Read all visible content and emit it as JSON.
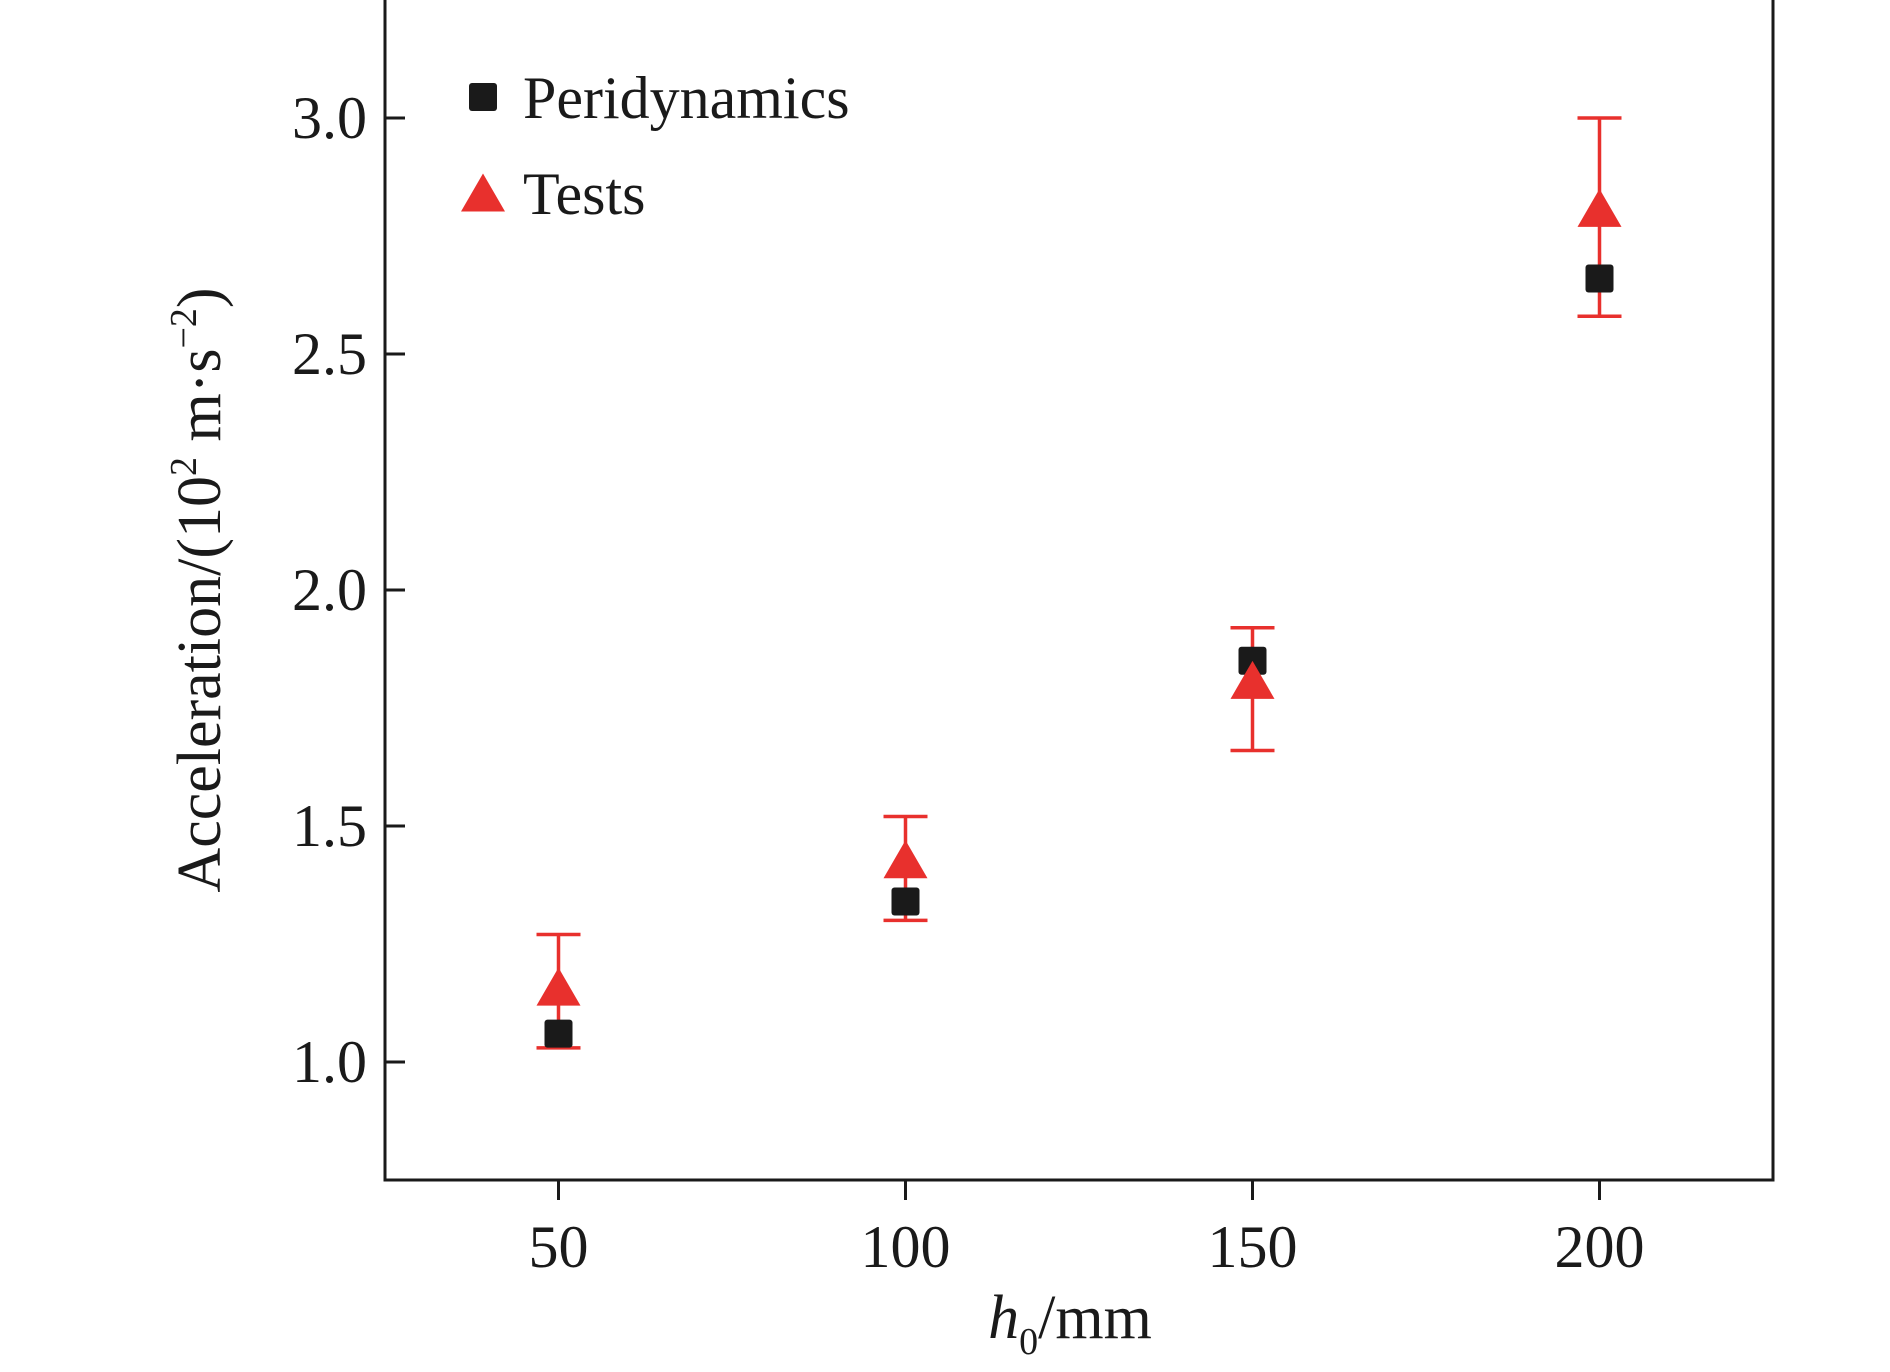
{
  "chart_data": {
    "type": "scatter",
    "x_ticks": [
      "50",
      "100",
      "150",
      "200"
    ],
    "y_ticks": [
      "1.0",
      "1.5",
      "2.0",
      "2.5",
      "3.0"
    ],
    "xlim": [
      25,
      225
    ],
    "ylim": [
      0.75,
      3.25
    ],
    "x_label": {
      "var": "h",
      "sub": "0",
      "unit": "/mm"
    },
    "y_label": {
      "main": "Acceleration/(10",
      "exp": "2",
      "unit": " m·s",
      "unit_exp": "−2",
      "close": ")"
    },
    "series": [
      {
        "name": "Peridynamics",
        "marker": "square",
        "color": "#1a1a1a",
        "points": [
          {
            "x": 50,
            "y": 1.06
          },
          {
            "x": 100,
            "y": 1.34
          },
          {
            "x": 150,
            "y": 1.85
          },
          {
            "x": 200,
            "y": 2.66
          }
        ]
      },
      {
        "name": "Tests",
        "marker": "triangle",
        "color": "#e8302d",
        "points": [
          {
            "x": 50,
            "y": 1.15,
            "err_low": 1.03,
            "err_high": 1.27
          },
          {
            "x": 100,
            "y": 1.42,
            "err_low": 1.3,
            "err_high": 1.52
          },
          {
            "x": 150,
            "y": 1.8,
            "err_low": 1.66,
            "err_high": 1.92
          },
          {
            "x": 200,
            "y": 2.8,
            "err_low": 2.58,
            "err_high": 3.0
          }
        ]
      }
    ],
    "legend_position": "top-left",
    "grid": false
  }
}
